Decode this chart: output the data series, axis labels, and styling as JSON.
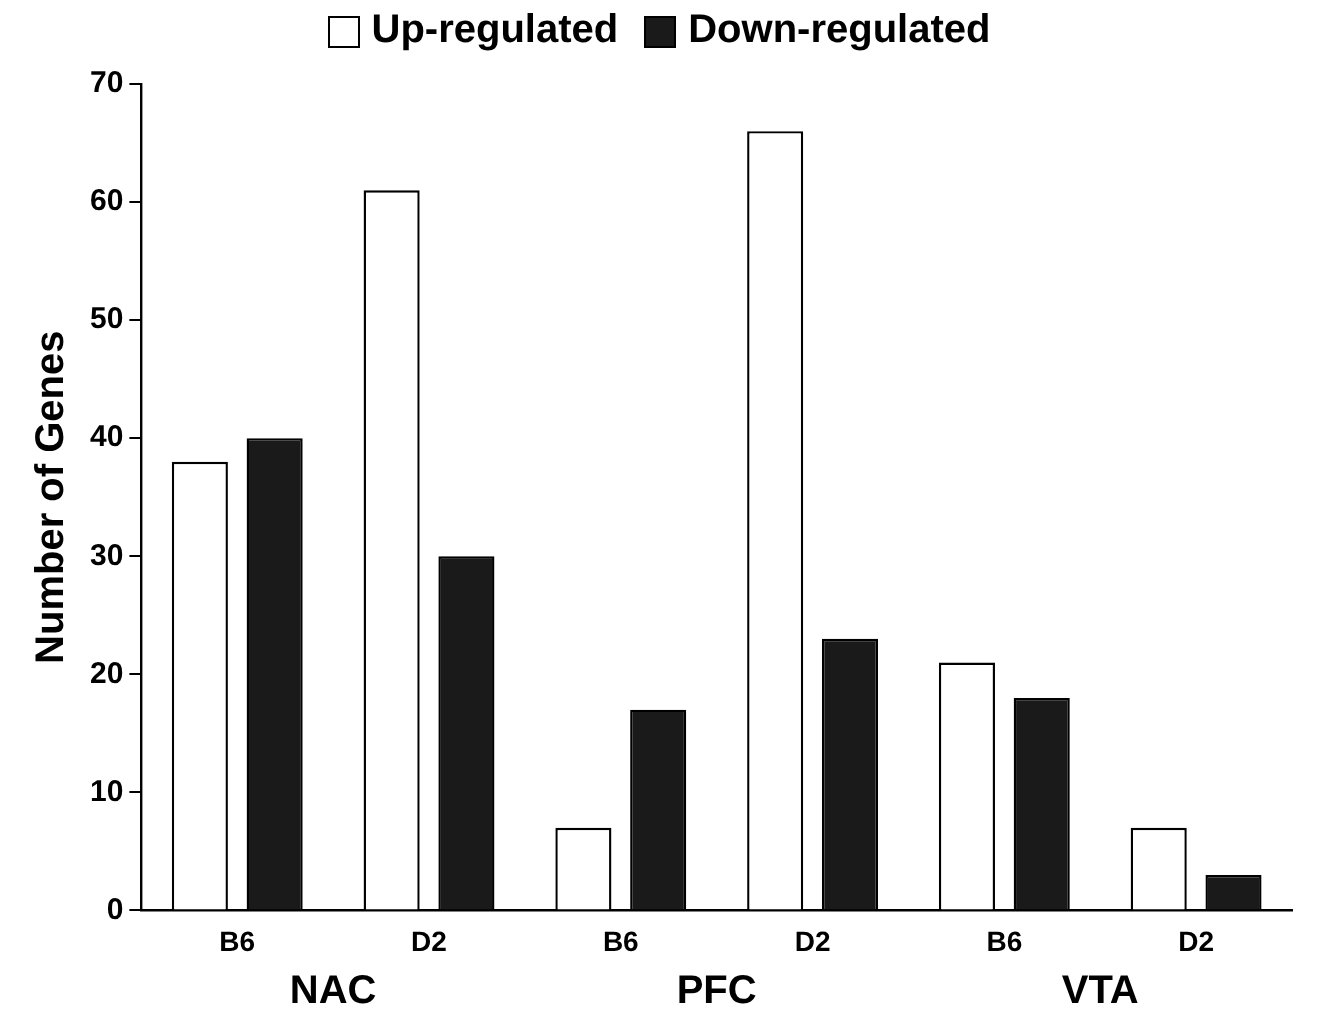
{
  "chart_data": {
    "type": "bar",
    "ylabel": "Number of Genes",
    "categories": [
      "B6",
      "D2",
      "B6",
      "D2",
      "B6",
      "D2"
    ],
    "series": [
      {
        "name": "Up-regulated",
        "color": "#ffffff",
        "values": [
          38,
          61,
          7,
          66,
          21,
          7
        ]
      },
      {
        "name": "Down-regulated",
        "color": "#1a1a1a",
        "values": [
          40,
          30,
          17,
          23,
          18,
          3
        ]
      }
    ],
    "annotations": [
      "NAC",
      "PFC",
      "VTA"
    ],
    "ylim": [
      0,
      70
    ],
    "yticks": [
      0,
      10,
      20,
      30,
      40,
      50,
      60,
      70
    ],
    "grid": false,
    "legend": "top"
  }
}
